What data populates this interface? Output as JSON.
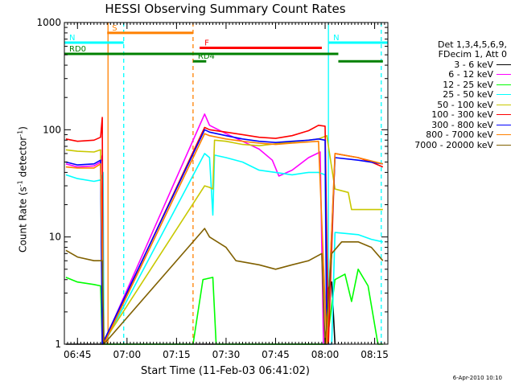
{
  "chart_data": {
    "type": "line",
    "title": "HESSI Observing Summary Count Rates",
    "xlabel": "Start Time (11-Feb-03 06:41:02)",
    "ylabel": "Count Rate (s⁻¹ detector⁻¹)",
    "y_scale": "log",
    "ylim": [
      1,
      1000
    ],
    "xlim": [
      "06:41:02",
      "08:19:00"
    ],
    "x_ticks": [
      "06:45",
      "07:00",
      "07:15",
      "07:30",
      "07:45",
      "08:00",
      "08:15"
    ],
    "y_ticks": [
      "1",
      "10",
      "100",
      "1000"
    ],
    "legend_header": [
      "Det 1,3,4,5,6,9,",
      "FDecim 1, Att 0"
    ],
    "legend_placement": "right",
    "timestamp": "6-Apr-2010 10:10",
    "series": [
      {
        "name": "3 - 6 keV",
        "color": "#000000",
        "points": [
          [
            "06:41:30",
            1
          ],
          [
            "08:00:30",
            1
          ],
          [
            "08:00:45",
            3.2
          ],
          [
            "08:02:00",
            3.8
          ],
          [
            "08:03:00",
            1
          ]
        ]
      },
      {
        "name": "6 - 12 keV",
        "color": "#ff00ff",
        "points": [
          [
            "06:41:30",
            48
          ],
          [
            "06:45:00",
            45
          ],
          [
            "06:50:00",
            46
          ],
          [
            "06:52:00",
            50
          ],
          [
            "06:52:30",
            58
          ],
          [
            "06:52:45",
            1
          ],
          [
            "07:23:30",
            140
          ],
          [
            "07:25:00",
            110
          ],
          [
            "07:30:00",
            92
          ],
          [
            "07:35:00",
            78
          ],
          [
            "07:40:00",
            66
          ],
          [
            "07:44:00",
            52
          ],
          [
            "07:46:00",
            37
          ],
          [
            "07:50:00",
            42
          ],
          [
            "07:55:00",
            55
          ],
          [
            "07:58:30",
            62
          ],
          [
            "07:59:30",
            1
          ],
          [
            "08:02:00",
            1
          ]
        ]
      },
      {
        "name": "12 - 25 keV",
        "color": "#00ff00",
        "points": [
          [
            "06:41:30",
            4.2
          ],
          [
            "06:45:00",
            3.8
          ],
          [
            "06:50:00",
            3.6
          ],
          [
            "06:52:00",
            3.5
          ],
          [
            "06:52:30",
            1
          ],
          [
            "07:20:00",
            1
          ],
          [
            "07:23:00",
            4
          ],
          [
            "07:26:00",
            4.2
          ],
          [
            "07:27:00",
            1
          ],
          [
            "08:00:30",
            1
          ],
          [
            "08:03:00",
            4
          ],
          [
            "08:06:00",
            4.5
          ],
          [
            "08:08:00",
            2.5
          ],
          [
            "08:10:00",
            5
          ],
          [
            "08:13:00",
            3.5
          ],
          [
            "08:16:00",
            1
          ],
          [
            "08:17:30",
            1
          ]
        ]
      },
      {
        "name": "25 - 50 keV",
        "color": "#00ffff",
        "points": [
          [
            "06:41:30",
            38
          ],
          [
            "06:45:00",
            35
          ],
          [
            "06:50:00",
            33
          ],
          [
            "06:52:00",
            34
          ],
          [
            "06:52:45",
            40
          ],
          [
            "06:53:00",
            1
          ],
          [
            "07:23:30",
            60
          ],
          [
            "07:25:00",
            55
          ],
          [
            "07:26:00",
            16
          ],
          [
            "07:26:30",
            58
          ],
          [
            "07:30:00",
            55
          ],
          [
            "07:35:00",
            50
          ],
          [
            "07:40:00",
            42
          ],
          [
            "07:45:00",
            40
          ],
          [
            "07:50:00",
            38
          ],
          [
            "07:55:00",
            40
          ],
          [
            "07:58:00",
            40
          ],
          [
            "08:00:00",
            38
          ],
          [
            "08:00:30",
            1
          ],
          [
            "08:02:00",
            1
          ],
          [
            "08:03:00",
            11
          ],
          [
            "08:10:00",
            10.5
          ],
          [
            "08:14:00",
            9.5
          ],
          [
            "08:17:30",
            9
          ]
        ]
      },
      {
        "name": "50 - 100 keV",
        "color": "#c8c800",
        "points": [
          [
            "06:41:30",
            65
          ],
          [
            "06:45:00",
            63
          ],
          [
            "06:50:00",
            62
          ],
          [
            "06:52:00",
            65
          ],
          [
            "06:52:30",
            1
          ],
          [
            "07:23:30",
            30
          ],
          [
            "07:25:00",
            29
          ],
          [
            "07:26:00",
            28
          ],
          [
            "07:26:30",
            80
          ],
          [
            "07:30:00",
            78
          ],
          [
            "07:35:00",
            73
          ],
          [
            "07:40:00",
            71
          ],
          [
            "07:45:00",
            74
          ],
          [
            "07:50:00",
            77
          ],
          [
            "07:55:00",
            80
          ],
          [
            "07:58:00",
            82
          ],
          [
            "08:00:30",
            88
          ],
          [
            "08:03:00",
            28
          ],
          [
            "08:05:00",
            27
          ],
          [
            "08:07:00",
            26
          ],
          [
            "08:08:00",
            18
          ],
          [
            "08:17:30",
            18
          ]
        ]
      },
      {
        "name": "100 - 300 keV",
        "color": "#ff0000",
        "points": [
          [
            "06:41:30",
            82
          ],
          [
            "06:45:00",
            78
          ],
          [
            "06:50:00",
            80
          ],
          [
            "06:52:00",
            85
          ],
          [
            "06:52:30",
            130
          ],
          [
            "06:52:45",
            1
          ],
          [
            "07:23:30",
            105
          ],
          [
            "07:25:00",
            100
          ],
          [
            "07:30:00",
            95
          ],
          [
            "07:35:00",
            90
          ],
          [
            "07:40:00",
            85
          ],
          [
            "07:45:00",
            83
          ],
          [
            "07:50:00",
            88
          ],
          [
            "07:55:00",
            98
          ],
          [
            "07:58:00",
            110
          ],
          [
            "08:00:00",
            108
          ],
          [
            "08:01:00",
            1
          ],
          [
            "08:03:00",
            60
          ],
          [
            "08:10:00",
            55
          ],
          [
            "08:14:00",
            50
          ],
          [
            "08:17:30",
            45
          ]
        ]
      },
      {
        "name": "300 - 800 keV",
        "color": "#0000ff",
        "points": [
          [
            "06:41:30",
            50
          ],
          [
            "06:45:00",
            47
          ],
          [
            "06:50:00",
            48
          ],
          [
            "06:52:00",
            52
          ],
          [
            "06:52:30",
            1
          ],
          [
            "07:23:30",
            100
          ],
          [
            "07:25:00",
            95
          ],
          [
            "07:30:00",
            88
          ],
          [
            "07:35:00",
            82
          ],
          [
            "07:40:00",
            78
          ],
          [
            "07:45:00",
            76
          ],
          [
            "07:50:00",
            78
          ],
          [
            "07:55:00",
            80
          ],
          [
            "07:58:00",
            82
          ],
          [
            "08:00:00",
            80
          ],
          [
            "08:00:30",
            1
          ],
          [
            "08:03:00",
            55
          ],
          [
            "08:10:00",
            52
          ],
          [
            "08:17:30",
            48
          ]
        ]
      },
      {
        "name": "800 - 7000 keV",
        "color": "#ff8000",
        "points": [
          [
            "06:41:30",
            45
          ],
          [
            "06:45:00",
            44
          ],
          [
            "06:50:00",
            44
          ],
          [
            "06:52:00",
            48
          ],
          [
            "06:53:00",
            1
          ],
          [
            "07:23:30",
            92
          ],
          [
            "07:25:00",
            88
          ],
          [
            "07:30:00",
            82
          ],
          [
            "07:35:00",
            78
          ],
          [
            "07:40:00",
            75
          ],
          [
            "07:45:00",
            73
          ],
          [
            "07:50:00",
            75
          ],
          [
            "07:55:00",
            77
          ],
          [
            "07:58:00",
            78
          ],
          [
            "08:00:30",
            1
          ],
          [
            "08:03:00",
            60
          ],
          [
            "08:10:00",
            55
          ],
          [
            "08:17:30",
            48
          ]
        ]
      },
      {
        "name": "7000 - 20000 keV",
        "color": "#806000",
        "points": [
          [
            "06:41:30",
            7.5
          ],
          [
            "06:45:00",
            6.5
          ],
          [
            "06:50:00",
            6
          ],
          [
            "06:52:30",
            6
          ],
          [
            "06:53:00",
            1
          ],
          [
            "07:23:30",
            12
          ],
          [
            "07:25:00",
            10
          ],
          [
            "07:30:00",
            8
          ],
          [
            "07:33:00",
            6
          ],
          [
            "07:40:00",
            5.5
          ],
          [
            "07:45:00",
            5
          ],
          [
            "07:50:00",
            5.5
          ],
          [
            "07:55:00",
            6
          ],
          [
            "07:59:00",
            7
          ],
          [
            "08:00:00",
            1
          ],
          [
            "08:02:00",
            7
          ],
          [
            "08:05:00",
            9
          ],
          [
            "08:10:00",
            9
          ],
          [
            "08:14:00",
            8
          ],
          [
            "08:17:30",
            6
          ]
        ]
      }
    ],
    "flags": [
      {
        "label": "S",
        "color": "#ff8000",
        "y": 800,
        "start": "06:54:00",
        "end": "07:20:00"
      },
      {
        "label": "N",
        "color": "#00ffff",
        "y": 650,
        "start": "06:41:02",
        "end": "06:59:00"
      },
      {
        "label": "N",
        "color": "#00ffff",
        "y": 650,
        "start": "08:01:00",
        "end": "08:19:00"
      },
      {
        "label": "F",
        "color": "#ff0000",
        "y": 580,
        "start": "07:22:00",
        "end": "07:59:00"
      },
      {
        "label": "RD0",
        "color": "#008000",
        "y": 510,
        "start": "06:41:02",
        "end": "08:04:00"
      },
      {
        "label": "RD4",
        "color": "#008000",
        "y": 435,
        "start": "07:20:00",
        "end": "07:24:00"
      },
      {
        "label": "",
        "color": "#008000",
        "y": 435,
        "start": "08:04:00",
        "end": "08:17:30"
      }
    ],
    "vlines": [
      {
        "t": "06:54:15",
        "color": "#ff8000",
        "style": "solid"
      },
      {
        "t": "06:59:00",
        "color": "#00ffff",
        "style": "dashed"
      },
      {
        "t": "07:20:00",
        "color": "#ff8000",
        "style": "dashed"
      },
      {
        "t": "08:01:00",
        "color": "#00ffff",
        "style": "solid"
      },
      {
        "t": "08:17:00",
        "color": "#00ffff",
        "style": "dashed"
      }
    ]
  }
}
